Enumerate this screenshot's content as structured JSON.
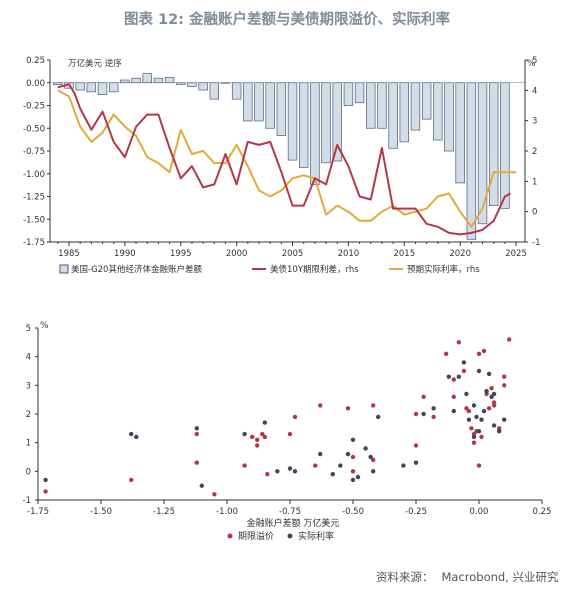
{
  "title": "图表 12: 金融账户差额与美债期限溢价、实际利率",
  "source": {
    "label": "资料来源：",
    "value": "Macrobond, 兴业研究"
  },
  "chart_data": [
    {
      "type": "bar+line",
      "left_unit": "万亿美元  逆序",
      "right_unit": "%",
      "x_ticks": [
        1985,
        1990,
        1995,
        2000,
        2005,
        2010,
        2015,
        2020,
        2025
      ],
      "left_ticks": [
        "0.25",
        "0.00",
        "-0.25",
        "-0.50",
        "-0.75",
        "-1.00",
        "-1.25",
        "-1.50",
        "-1.75"
      ],
      "right_ticks": [
        "5",
        "4",
        "3",
        "2",
        "1",
        "0",
        "-1"
      ],
      "left_ylim": [
        -1.75,
        0.25
      ],
      "right_ylim": [
        -1,
        5
      ],
      "legend": [
        "美国-G20其他经济体金融账户差额",
        "美债10Y期限利差，rhs",
        "预期实际利率，rhs"
      ],
      "colors": {
        "bar_fill": "#d3dde8",
        "bar_edge": "#4a5a78",
        "term_premium": "#b5364b",
        "real_rate": "#e3a93a"
      },
      "years": [
        1984,
        1985,
        1986,
        1987,
        1988,
        1989,
        1990,
        1991,
        1992,
        1993,
        1994,
        1995,
        1996,
        1997,
        1998,
        1999,
        2000,
        2001,
        2002,
        2003,
        2004,
        2005,
        2006,
        2007,
        2008,
        2009,
        2010,
        2011,
        2012,
        2013,
        2014,
        2015,
        2016,
        2017,
        2018,
        2019,
        2020,
        2021,
        2022,
        2023,
        2024
      ],
      "bars": [
        -0.02,
        -0.06,
        -0.08,
        -0.1,
        -0.13,
        -0.1,
        0.03,
        0.05,
        0.1,
        0.05,
        0.06,
        -0.02,
        -0.04,
        -0.08,
        -0.18,
        0.0,
        -0.18,
        -0.42,
        -0.42,
        -0.5,
        -0.58,
        -0.85,
        -0.93,
        -1.12,
        -0.88,
        -0.86,
        -0.25,
        -0.22,
        -0.5,
        -0.5,
        -0.72,
        -0.65,
        -0.52,
        -0.4,
        -0.63,
        -0.75,
        -1.1,
        -1.72,
        -1.55,
        -1.35,
        -1.38
      ],
      "term_premium_x": [
        1984,
        1985,
        1985.5,
        1986,
        1987,
        1988,
        1989,
        1990,
        1991,
        1992,
        1993,
        1994,
        1995,
        1996,
        1997,
        1998,
        1999,
        2000,
        2001,
        2002,
        2003,
        2004,
        2005,
        2006,
        2007,
        2008,
        2009,
        2010,
        2011,
        2012,
        2013,
        2014,
        2015,
        2016,
        2017,
        2018,
        2019,
        2020,
        2021,
        2022,
        2023,
        2024,
        2024.5
      ],
      "term_premium": [
        4.1,
        4.2,
        3.9,
        3.4,
        2.7,
        3.3,
        2.3,
        1.8,
        2.8,
        3.2,
        3.2,
        2.1,
        1.1,
        1.5,
        0.8,
        0.9,
        1.9,
        0.9,
        2.3,
        2.2,
        2.3,
        1.3,
        0.2,
        0.2,
        1.1,
        0.9,
        2.2,
        1.5,
        0.5,
        0.4,
        2.1,
        0.1,
        0.1,
        0.1,
        -0.4,
        -0.5,
        -0.7,
        -0.75,
        -0.7,
        -0.6,
        -0.3,
        0.5,
        0.6
      ],
      "real_rate_x": [
        1984,
        1985,
        1986,
        1987,
        1988,
        1989,
        1990,
        1991,
        1992,
        1993,
        1994,
        1995,
        1996,
        1997,
        1998,
        1999,
        2000,
        2001,
        2002,
        2003,
        2004,
        2005,
        2006,
        2007,
        2008,
        2009,
        2010,
        2011,
        2012,
        2013,
        2014,
        2015,
        2016,
        2017,
        2018,
        2019,
        2020,
        2021,
        2022,
        2023,
        2024,
        2025
      ],
      "real_rate": [
        4.0,
        3.8,
        2.8,
        2.3,
        2.6,
        3.2,
        2.8,
        2.5,
        1.8,
        1.6,
        1.3,
        2.7,
        1.9,
        2.0,
        1.6,
        1.6,
        2.2,
        1.5,
        0.7,
        0.5,
        0.7,
        1.1,
        1.2,
        1.1,
        -0.1,
        0.2,
        0.0,
        -0.3,
        -0.3,
        0.0,
        0.2,
        -0.1,
        0.0,
        0.1,
        0.5,
        0.6,
        0.0,
        -0.5,
        0.1,
        1.3,
        1.3,
        1.3
      ]
    },
    {
      "type": "scatter",
      "xlabel": "金融账户差额 万亿美元",
      "ylabel": "%",
      "xlim": [
        -1.75,
        0.25
      ],
      "ylim": [
        -1,
        5
      ],
      "x_ticks": [
        "-1.75",
        "-1.50",
        "-1.25",
        "-1.00",
        "-0.75",
        "-0.50",
        "-0.25",
        "0.00",
        "0.25"
      ],
      "y_ticks": [
        "5",
        "4",
        "3",
        "2",
        "1",
        "0",
        "-1"
      ],
      "series": [
        {
          "name": "期限溢价",
          "color": "#b5364b",
          "x": [
            -1.72,
            -1.38,
            -1.12,
            -1.12,
            -1.05,
            -0.93,
            -0.9,
            -0.88,
            -0.88,
            -0.86,
            -0.85,
            -0.84,
            -0.75,
            -0.73,
            -0.65,
            -0.63,
            -0.52,
            -0.5,
            -0.5,
            -0.42,
            -0.42,
            -0.25,
            -0.25,
            -0.22,
            -0.18,
            -0.13,
            -0.1,
            -0.1,
            -0.08,
            -0.06,
            -0.05,
            -0.04,
            -0.03,
            -0.02,
            -0.02,
            -0.01,
            0.0,
            0.0,
            0.01,
            0.02,
            0.03,
            0.04,
            0.05,
            0.06,
            0.06,
            0.08,
            0.1,
            0.1,
            0.12
          ],
          "y": [
            -0.7,
            -0.3,
            1.3,
            0.3,
            -0.8,
            0.2,
            1.2,
            0.9,
            1.1,
            1.3,
            1.2,
            -0.1,
            1.3,
            1.9,
            0.2,
            2.3,
            2.2,
            0.0,
            0.5,
            2.3,
            0.4,
            2.0,
            0.9,
            2.6,
            1.9,
            4.1,
            2.6,
            3.2,
            4.5,
            3.5,
            2.2,
            2.1,
            1.5,
            1.3,
            1.0,
            1.4,
            0.2,
            4.1,
            1.2,
            4.2,
            2.7,
            2.2,
            2.9,
            2.3,
            2.4,
            1.5,
            3.0,
            3.3,
            4.6
          ]
        },
        {
          "name": "实际利率",
          "color": "#3c4760",
          "x": [
            -1.72,
            -1.38,
            -1.36,
            -1.12,
            -1.1,
            -0.93,
            -0.85,
            -0.8,
            -0.75,
            -0.73,
            -0.63,
            -0.58,
            -0.55,
            -0.52,
            -0.5,
            -0.5,
            -0.48,
            -0.45,
            -0.43,
            -0.42,
            -0.4,
            -0.3,
            -0.25,
            -0.22,
            -0.18,
            -0.12,
            -0.1,
            -0.08,
            -0.06,
            -0.05,
            -0.04,
            -0.02,
            -0.02,
            -0.01,
            0.0,
            0.0,
            0.01,
            0.02,
            0.03,
            0.04,
            0.05,
            0.06,
            0.06,
            0.08,
            0.1
          ],
          "y": [
            -0.3,
            1.3,
            1.2,
            1.5,
            -0.5,
            1.3,
            1.7,
            0.0,
            0.1,
            0.0,
            0.6,
            -0.1,
            0.2,
            0.6,
            1.1,
            -0.3,
            -0.2,
            0.8,
            0.5,
            0.0,
            1.9,
            0.2,
            0.3,
            2.0,
            2.2,
            3.3,
            2.1,
            3.3,
            3.8,
            2.7,
            1.8,
            2.3,
            1.2,
            1.9,
            1.4,
            3.5,
            1.8,
            2.1,
            2.8,
            3.4,
            2.6,
            1.6,
            2.7,
            1.4,
            1.8
          ]
        }
      ]
    }
  ]
}
